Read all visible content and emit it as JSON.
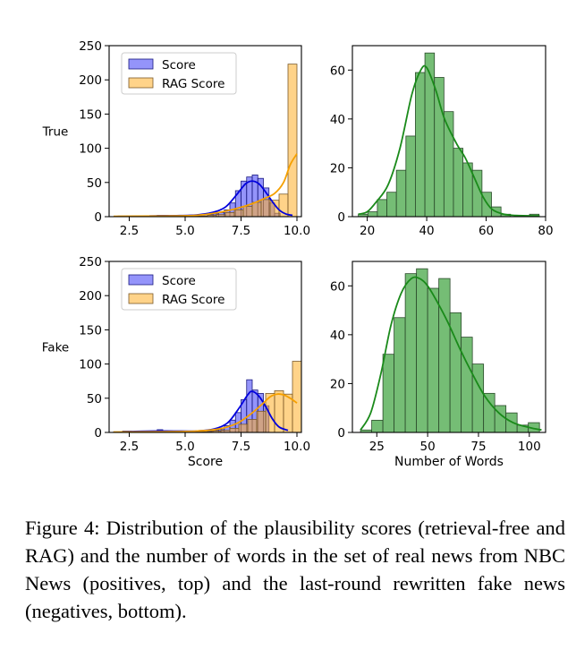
{
  "chart_data": [
    {
      "type": "histogram",
      "row_label": "True",
      "xlabel": "",
      "ylabel": "",
      "xlim": [
        1.6,
        10.2
      ],
      "ylim": [
        0,
        250
      ],
      "xticks": [
        2.5,
        5.0,
        7.5,
        10.0
      ],
      "xtick_labels": [
        "2.5",
        "5.0",
        "7.5",
        "10.0"
      ],
      "yticks": [
        0,
        50,
        100,
        150,
        200,
        250
      ],
      "legend": "top-left",
      "series": [
        {
          "name": "Score",
          "color": "#0000ee",
          "bin_edges": [
            3.5,
            3.75,
            4.0,
            4.25,
            4.5,
            4.75,
            5.0,
            5.25,
            5.5,
            5.75,
            6.0,
            6.25,
            6.5,
            6.75,
            7.0,
            7.25,
            7.5,
            7.75,
            8.0,
            8.25,
            8.5,
            8.75,
            9.0,
            9.25
          ],
          "counts": [
            1,
            2,
            2,
            1,
            1,
            2,
            2,
            2,
            1,
            1,
            3,
            4,
            6,
            10,
            20,
            38,
            52,
            58,
            61,
            56,
            42,
            20,
            5
          ],
          "kde": [
            [
              3.4,
              1
            ],
            [
              4.5,
              1.5
            ],
            [
              5.5,
              2.5
            ],
            [
              6.2,
              6
            ],
            [
              6.8,
              14
            ],
            [
              7.3,
              32
            ],
            [
              7.7,
              48
            ],
            [
              8.0,
              52
            ],
            [
              8.3,
              48
            ],
            [
              8.6,
              36
            ],
            [
              8.9,
              22
            ],
            [
              9.2,
              10
            ],
            [
              9.5,
              4
            ],
            [
              9.8,
              2
            ]
          ]
        },
        {
          "name": "RAG Score",
          "color": "#ffa500",
          "bin_edges": [
            2.0,
            2.4,
            2.8,
            3.2,
            3.6,
            4.0,
            4.4,
            4.8,
            5.2,
            5.6,
            6.0,
            6.4,
            6.8,
            7.2,
            7.6,
            8.0,
            8.4,
            8.8,
            9.2,
            9.6,
            10.0
          ],
          "counts": [
            1,
            1,
            1,
            1,
            1,
            1,
            1,
            1,
            1,
            1,
            2,
            3,
            6,
            10,
            15,
            21,
            25,
            24,
            33,
            223
          ],
          "kde": [
            [
              1.8,
              0.5
            ],
            [
              4.0,
              1
            ],
            [
              5.5,
              2
            ],
            [
              6.5,
              6
            ],
            [
              7.3,
              12
            ],
            [
              8.0,
              19
            ],
            [
              8.5,
              26
            ],
            [
              9.0,
              34
            ],
            [
              9.4,
              50
            ],
            [
              9.7,
              76
            ],
            [
              10.0,
              92
            ]
          ]
        }
      ]
    },
    {
      "type": "histogram",
      "xlabel": "",
      "ylabel": "",
      "xlim": [
        15,
        80
      ],
      "ylim": [
        0,
        70
      ],
      "xticks": [
        20,
        40,
        60,
        80
      ],
      "xtick_labels": [
        "20",
        "40",
        "60",
        "80"
      ],
      "yticks": [
        0,
        20,
        40,
        60
      ],
      "series": [
        {
          "name": "",
          "color": "#2e8b2e",
          "bin_edges": [
            17,
            20.2,
            23.4,
            26.6,
            29.8,
            33,
            36.2,
            39.4,
            42.6,
            45.8,
            49,
            52.2,
            55.4,
            58.6,
            61.8,
            65,
            68.2,
            71.4,
            74.6,
            77.8
          ],
          "counts": [
            1,
            2,
            7,
            10,
            19,
            33,
            59,
            67,
            57,
            43,
            28,
            22,
            19,
            10,
            4,
            1,
            0,
            0,
            1
          ],
          "kde": [
            [
              17,
              1
            ],
            [
              20,
              2
            ],
            [
              23,
              6
            ],
            [
              27,
              13
            ],
            [
              31,
              28
            ],
            [
              35,
              50
            ],
            [
              38,
              60
            ],
            [
              40,
              61
            ],
            [
              43,
              52
            ],
            [
              46,
              40
            ],
            [
              50,
              30
            ],
            [
              53,
              24
            ],
            [
              56,
              16
            ],
            [
              59,
              8
            ],
            [
              62,
              3
            ],
            [
              66,
              1
            ],
            [
              70,
              0.5
            ],
            [
              78,
              0.3
            ]
          ]
        }
      ]
    },
    {
      "type": "histogram",
      "row_label": "Fake",
      "xlabel": "Score",
      "ylabel": "",
      "xlim": [
        1.6,
        10.2
      ],
      "ylim": [
        0,
        250
      ],
      "xticks": [
        2.5,
        5.0,
        7.5,
        10.0
      ],
      "xtick_labels": [
        "2.5",
        "5.0",
        "7.5",
        "10.0"
      ],
      "yticks": [
        0,
        50,
        100,
        150,
        200,
        250
      ],
      "legend": "top-left",
      "series": [
        {
          "name": "Score",
          "color": "#0000ee",
          "bin_edges": [
            2.5,
            2.75,
            3.0,
            3.25,
            3.5,
            3.75,
            4.0,
            4.25,
            4.5,
            4.75,
            5.0,
            5.25,
            5.5,
            5.75,
            6.0,
            6.25,
            6.5,
            6.75,
            7.0,
            7.25,
            7.5,
            7.75,
            8.0,
            8.25,
            8.5,
            8.75
          ],
          "counts": [
            1,
            1,
            1,
            1,
            1,
            4,
            2,
            2,
            1,
            1,
            1,
            1,
            2,
            1,
            2,
            3,
            4,
            10,
            18,
            29,
            48,
            77,
            62,
            57,
            39,
            13
          ],
          "kde": [
            [
              2.2,
              1
            ],
            [
              3.5,
              2
            ],
            [
              4.5,
              2
            ],
            [
              5.5,
              2
            ],
            [
              6.3,
              5
            ],
            [
              6.9,
              14
            ],
            [
              7.4,
              35
            ],
            [
              7.8,
              55
            ],
            [
              8.0,
              60
            ],
            [
              8.3,
              53
            ],
            [
              8.6,
              38
            ],
            [
              8.9,
              20
            ],
            [
              9.2,
              8
            ],
            [
              9.6,
              3
            ]
          ]
        },
        {
          "name": "RAG Score",
          "color": "#ffa500",
          "bin_edges": [
            1.8,
            2.2,
            2.6,
            3.0,
            3.4,
            3.8,
            4.2,
            4.6,
            5.0,
            5.4,
            5.8,
            6.2,
            6.6,
            7.0,
            7.4,
            7.8,
            8.2,
            8.6,
            9.0,
            9.4,
            9.8,
            10.2
          ],
          "counts": [
            1,
            2,
            1,
            1,
            1,
            1,
            1,
            1,
            1,
            1,
            1,
            2,
            3,
            6,
            12,
            19,
            31,
            57,
            61,
            56,
            104
          ],
          "kde": [
            [
              1.8,
              0.5
            ],
            [
              4.0,
              1
            ],
            [
              5.5,
              2
            ],
            [
              6.5,
              5
            ],
            [
              7.3,
              13
            ],
            [
              7.9,
              26
            ],
            [
              8.4,
              40
            ],
            [
              8.8,
              52
            ],
            [
              9.1,
              56
            ],
            [
              9.4,
              55
            ],
            [
              9.7,
              50
            ],
            [
              10.0,
              43
            ]
          ]
        }
      ]
    },
    {
      "type": "histogram",
      "xlabel": "Number of Words",
      "ylabel": "",
      "xlim": [
        13,
        108
      ],
      "ylim": [
        0,
        70
      ],
      "xticks": [
        25,
        50,
        75,
        100
      ],
      "xtick_labels": [
        "25",
        "50",
        "75",
        "100"
      ],
      "yticks": [
        0,
        20,
        40,
        60
      ],
      "series": [
        {
          "name": "",
          "color": "#2e8b2e",
          "bin_edges": [
            17,
            22.5,
            28,
            33.5,
            39,
            44.5,
            50,
            55.5,
            61,
            66.5,
            72,
            77.5,
            83,
            88.5,
            94,
            99.5,
            105
          ],
          "counts": [
            1,
            5,
            32,
            47,
            65,
            67,
            59,
            63,
            49,
            39,
            28,
            16,
            11,
            8,
            3,
            4
          ],
          "kde": [
            [
              17,
              1
            ],
            [
              22,
              8
            ],
            [
              27,
              24
            ],
            [
              32,
              44
            ],
            [
              37,
              57
            ],
            [
              42,
              63
            ],
            [
              46,
              63
            ],
            [
              50,
              60
            ],
            [
              55,
              53
            ],
            [
              60,
              45
            ],
            [
              66,
              34
            ],
            [
              72,
              24
            ],
            [
              78,
              15
            ],
            [
              85,
              8
            ],
            [
              92,
              4
            ],
            [
              100,
              2
            ],
            [
              106,
              1
            ]
          ]
        }
      ]
    }
  ],
  "caption": "Figure 4:  Distribution of the plausibility scores (retrieval-free and RAG) and the number of words in the set of real news from NBC News (positives, top) and the last-round rewritten fake news (negatives, bottom)."
}
